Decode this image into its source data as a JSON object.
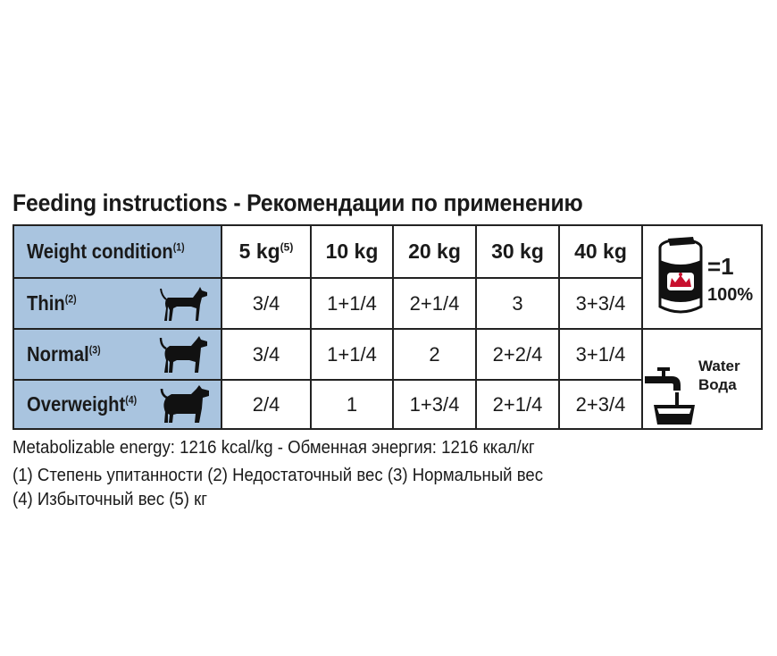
{
  "title": "Feeding instructions - Рекомендации по применению",
  "table": {
    "header": {
      "label": "Weight condition",
      "label_note": "(1)",
      "weights": [
        {
          "text": "5 kg",
          "note": "(5)"
        },
        {
          "text": "10 kg",
          "note": ""
        },
        {
          "text": "20 kg",
          "note": ""
        },
        {
          "text": "30 kg",
          "note": ""
        },
        {
          "text": "40 kg",
          "note": ""
        }
      ]
    },
    "rows": [
      {
        "label": "Thin",
        "note": "(2)",
        "icon": "thin-dog-icon",
        "values": [
          "3/4",
          "1+1/4",
          "2+1/4",
          "3",
          "3+3/4"
        ]
      },
      {
        "label": "Normal",
        "note": "(3)",
        "icon": "normal-dog-icon",
        "values": [
          "3/4",
          "1+1/4",
          "2",
          "2+2/4",
          "3+1/4"
        ]
      },
      {
        "label": "Overweight",
        "note": "(4)",
        "icon": "overweight-dog-icon",
        "values": [
          "2/4",
          "1",
          "1+3/4",
          "2+1/4",
          "2+3/4"
        ]
      }
    ],
    "legend": {
      "can_icon": "can-icon",
      "can_equals": "=1",
      "can_percent": "100%",
      "water_icon": "water-tap-bowl-icon",
      "water_en": "Water",
      "water_ru": "Вода"
    }
  },
  "footer": {
    "line1": "Metabolizable energy: 1216 kcal/kg - Обменная энергия: 1216 ккал/кг",
    "line2": "(1) Степень упитанности (2) Недостаточный вес (3) Нормальный вес",
    "line3": "(4) Избыточный вес (5) кг"
  },
  "colors": {
    "header_bg": "#a9c4df",
    "border": "#222222",
    "brand_red": "#c8102e"
  }
}
